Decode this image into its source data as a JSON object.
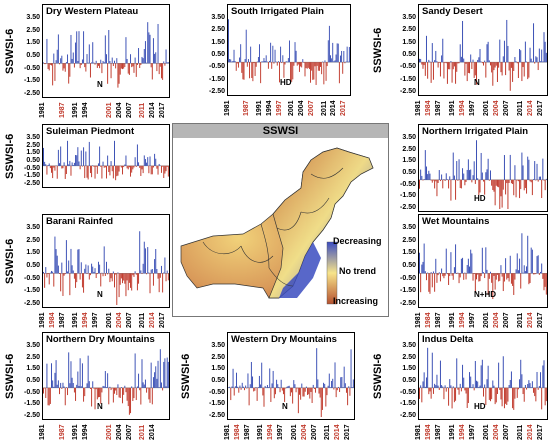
{
  "figure": {
    "map_title": "SSWSI",
    "legend": [
      "Decreasing",
      "No trend",
      "Increasing"
    ],
    "colors": {
      "positive": "#3a4fb5",
      "negative": "#c0392b",
      "frame": "#000000",
      "map_low": "#3b4cc0",
      "map_mid": "#f7e48a",
      "map_high": "#b5512f"
    }
  },
  "chart_data": [
    {
      "id": "p1",
      "type": "bar",
      "title": "Dry Western Plateau",
      "ylabel": "SSWSI-6",
      "trend": "N",
      "yticks": [
        "3.50",
        "2.50",
        "1.50",
        "0.50",
        "-0.50",
        "-1.50",
        "-2.50"
      ],
      "ylim": [
        -2.5,
        3.5
      ],
      "xticks": [
        "1981",
        "1987",
        "1991",
        "1994",
        "2001",
        "2004",
        "2007",
        "2011",
        "2014",
        "2017"
      ],
      "xlim": [
        1981,
        2017
      ]
    },
    {
      "id": "p2",
      "type": "bar",
      "title": "South Irrigated Plain",
      "ylabel": "",
      "trend": "HD",
      "yticks": [
        "3.50",
        "2.50",
        "1.50",
        "0.50",
        "-0.50",
        "-1.50",
        "-2.50"
      ],
      "ylim": [
        -2.5,
        3.5
      ],
      "xticks": [
        "1981",
        "1987",
        "1991",
        "1994",
        "1997",
        "2001",
        "2004",
        "2007",
        "2011",
        "2014",
        "2017"
      ],
      "xlim": [
        1981,
        2017
      ]
    },
    {
      "id": "p3",
      "type": "bar",
      "title": "Sandy Desert",
      "ylabel": "SSWSI-6",
      "trend": "N",
      "yticks": [
        "3.50",
        "2.50",
        "1.50",
        "0.50",
        "-0.50",
        "-1.50",
        "-2.50"
      ],
      "ylim": [
        -2.5,
        3.5
      ],
      "xticks": [
        "1981",
        "1984",
        "1987",
        "1991",
        "1994",
        "1997",
        "2001",
        "2004",
        "2007",
        "2011",
        "2014",
        "2017"
      ],
      "xlim": [
        1981,
        2017
      ]
    },
    {
      "id": "p4",
      "type": "bar",
      "title": "Suleiman Piedmont",
      "ylabel": "SSWSI-6",
      "trend": "",
      "yticks": [
        "3.50",
        "2.50",
        "1.50",
        "0.50",
        "-0.50",
        "-1.50",
        "-2.50"
      ],
      "ylim": [
        -2.5,
        3.5
      ],
      "xticks": [],
      "xlim": [
        1981,
        2017
      ]
    },
    {
      "id": "p5",
      "type": "bar",
      "title": "Northern Irrigated Plain",
      "ylabel": "SSWSI-6",
      "trend": "HD",
      "yticks": [
        "3.50",
        "2.50",
        "1.50",
        "0.50",
        "-0.50",
        "-1.50",
        "-2.50"
      ],
      "ylim": [
        -2.5,
        3.5
      ],
      "xticks": [],
      "xlim": [
        1981,
        2017
      ]
    },
    {
      "id": "p6",
      "type": "bar",
      "title": "Barani Rainfed",
      "ylabel": "SSWSI-6",
      "trend": "N",
      "yticks": [
        "3.50",
        "2.50",
        "1.50",
        "0.50",
        "-0.50",
        "-1.50",
        "-2.50"
      ],
      "ylim": [
        -2.5,
        3.5
      ],
      "xticks": [
        "1981",
        "1984",
        "1987",
        "1991",
        "1994",
        "1997",
        "2001",
        "2004",
        "2007",
        "2011",
        "2014",
        "2017"
      ],
      "xlim": [
        1981,
        2017
      ]
    },
    {
      "id": "p7",
      "type": "bar",
      "title": "Wet Mountains",
      "ylabel": "SSWSI-6",
      "trend": "N+HD",
      "yticks": [
        "3.50",
        "2.50",
        "1.50",
        "0.50",
        "-0.50",
        "-1.50",
        "-2.50"
      ],
      "ylim": [
        -2.5,
        3.5
      ],
      "xticks": [
        "1981",
        "1984",
        "1987",
        "1991",
        "1994",
        "1997",
        "2001",
        "2004",
        "2007",
        "2011",
        "2014",
        "2017"
      ],
      "xlim": [
        1981,
        2017
      ]
    },
    {
      "id": "p8",
      "type": "bar",
      "title": "Northern Dry Mountains",
      "ylabel": "SSWSI-6",
      "trend": "N",
      "yticks": [
        "3.50",
        "2.50",
        "1.50",
        "0.50",
        "-0.50",
        "-1.50",
        "-2.50"
      ],
      "ylim": [
        -2.5,
        3.5
      ],
      "xticks": [
        "1981",
        "1987",
        "1991",
        "1994",
        "2001",
        "2004",
        "2007",
        "2011",
        "2014"
      ],
      "xlim": [
        1981,
        2017
      ]
    },
    {
      "id": "p9",
      "type": "bar",
      "title": "Western Dry Mountains",
      "ylabel": "SSWSI-6",
      "trend": "N",
      "yticks": [
        "3.50",
        "2.50",
        "1.50",
        "0.50",
        "-0.50",
        "-1.50",
        "-2.50"
      ],
      "ylim": [
        -2.5,
        3.5
      ],
      "xticks": [
        "1981",
        "1984",
        "1987",
        "1991",
        "1994",
        "1997",
        "2001",
        "2004",
        "2007",
        "2011",
        "2014",
        "2017"
      ],
      "xlim": [
        1981,
        2017
      ]
    },
    {
      "id": "p10",
      "type": "bar",
      "title": "Indus Delta",
      "ylabel": "SSWSI-6",
      "trend": "HD",
      "yticks": [
        "3.50",
        "2.50",
        "1.50",
        "0.50",
        "-0.50",
        "-1.50",
        "-2.50"
      ],
      "ylim": [
        -2.5,
        3.5
      ],
      "xticks": [
        "1981",
        "1984",
        "1987",
        "1991",
        "1994",
        "1997",
        "2001",
        "2004",
        "2007",
        "2011",
        "2014",
        "2017"
      ],
      "xlim": [
        1981,
        2017
      ]
    }
  ]
}
